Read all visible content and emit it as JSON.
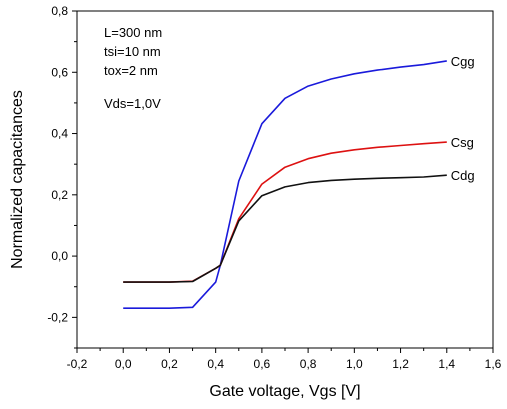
{
  "chart_data": {
    "type": "line",
    "title": "",
    "xlabel": "Gate voltage, Vgs [V]",
    "ylabel": "Normalized capacitances",
    "xlim": [
      -0.2,
      1.6
    ],
    "ylim": [
      -0.3,
      0.8
    ],
    "xticks": [
      -0.2,
      0.0,
      0.2,
      0.4,
      0.6,
      0.8,
      1.0,
      1.2,
      1.4,
      1.6
    ],
    "xtick_labels": [
      "-0,2",
      "0,0",
      "0,2",
      "0,4",
      "0,6",
      "0,8",
      "1,0",
      "1,2",
      "1,4",
      "1,6"
    ],
    "yticks": [
      -0.2,
      0.0,
      0.2,
      0.4,
      0.6,
      0.8
    ],
    "ytick_labels": [
      "-0,2",
      "0,0",
      "0,2",
      "0,4",
      "0,6",
      "0,8"
    ],
    "grid": false,
    "annotations": [
      "L=300 nm",
      "tsi=10 nm",
      "tox=2 nm",
      "Vds=1,0V"
    ],
    "series": [
      {
        "name": "Cgg",
        "color": "#1a1adb",
        "x": [
          0.0,
          0.1,
          0.2,
          0.3,
          0.4,
          0.42,
          0.5,
          0.6,
          0.7,
          0.8,
          0.9,
          1.0,
          1.1,
          1.2,
          1.3,
          1.4
        ],
        "y": [
          -0.17,
          -0.17,
          -0.17,
          -0.167,
          -0.085,
          -0.03,
          0.245,
          0.432,
          0.515,
          0.555,
          0.578,
          0.595,
          0.607,
          0.617,
          0.625,
          0.637
        ]
      },
      {
        "name": "Csg",
        "color": "#dd1111",
        "x": [
          0.0,
          0.1,
          0.2,
          0.3,
          0.4,
          0.42,
          0.5,
          0.6,
          0.7,
          0.8,
          0.9,
          1.0,
          1.1,
          1.2,
          1.3,
          1.4
        ],
        "y": [
          -0.085,
          -0.085,
          -0.085,
          -0.082,
          -0.04,
          -0.03,
          0.122,
          0.235,
          0.29,
          0.318,
          0.336,
          0.347,
          0.355,
          0.361,
          0.367,
          0.372
        ]
      },
      {
        "name": "Cdg",
        "color": "#111111",
        "x": [
          0.0,
          0.1,
          0.2,
          0.3,
          0.4,
          0.42,
          0.5,
          0.6,
          0.7,
          0.8,
          0.9,
          1.0,
          1.1,
          1.2,
          1.3,
          1.4
        ],
        "y": [
          -0.085,
          -0.085,
          -0.085,
          -0.083,
          -0.04,
          -0.03,
          0.115,
          0.197,
          0.226,
          0.24,
          0.247,
          0.251,
          0.254,
          0.256,
          0.258,
          0.264
        ]
      }
    ]
  }
}
